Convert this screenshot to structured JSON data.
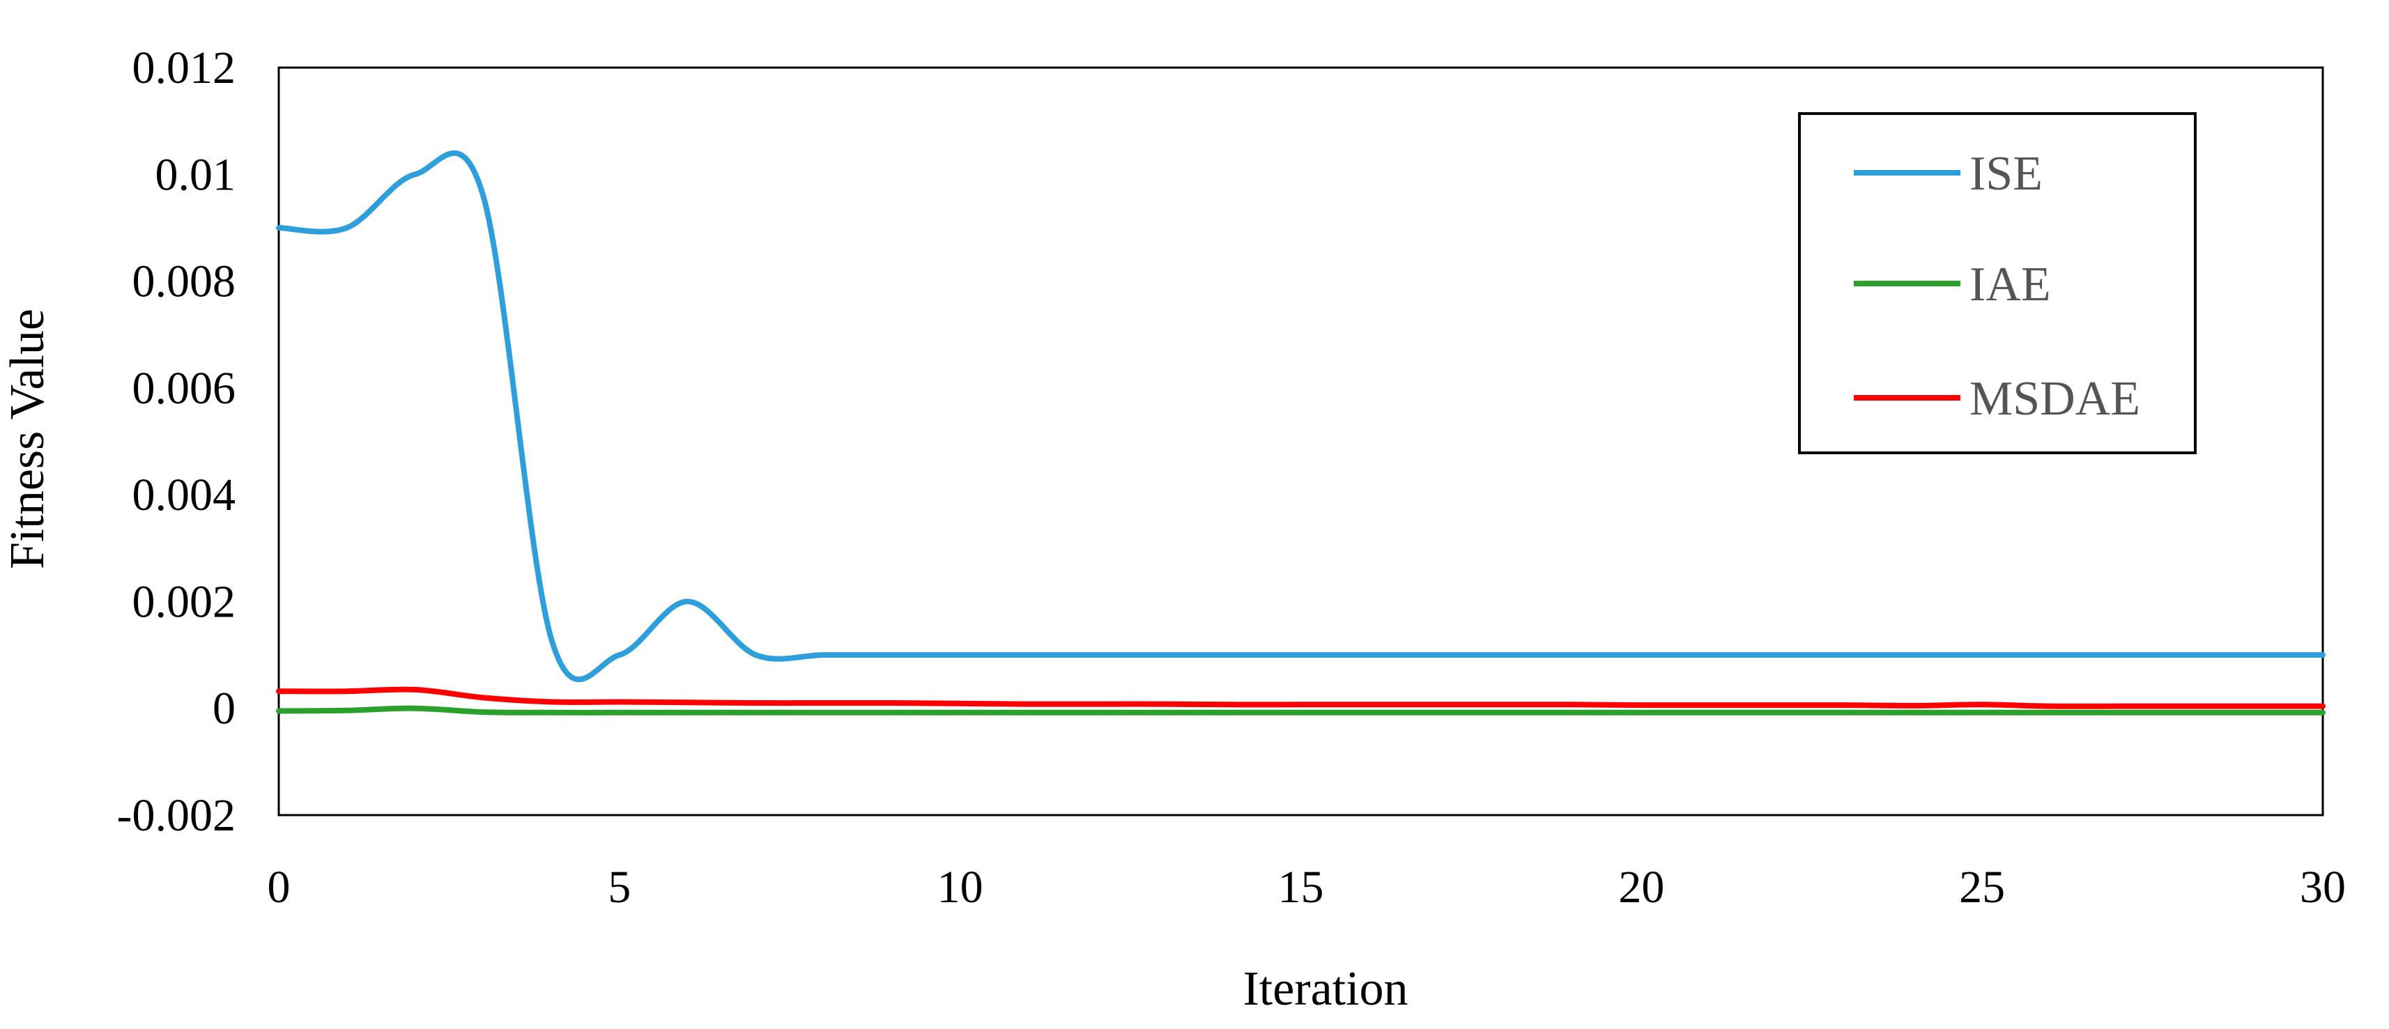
{
  "chart_data": {
    "type": "line",
    "title": "",
    "xlabel": "Iteration",
    "ylabel": "Fitness Value",
    "xlim": [
      0,
      30
    ],
    "ylim": [
      -0.002,
      0.012
    ],
    "xticks": [
      0,
      5,
      10,
      15,
      20,
      25,
      30
    ],
    "xtick_labels": [
      "0",
      "5",
      "10",
      "15",
      "20",
      "25",
      "30"
    ],
    "yticks": [
      -0.002,
      0,
      0.002,
      0.004,
      0.006,
      0.008,
      0.01,
      0.012
    ],
    "ytick_labels": [
      "-0.002",
      "0",
      "0.002",
      "0.004",
      "0.006",
      "0.008",
      "0.01",
      "0.012"
    ],
    "grid": false,
    "legend_position": "top-right",
    "series": [
      {
        "name": "ISE",
        "color": "#2f9fdc",
        "x": [
          0,
          1,
          2,
          3,
          4,
          5,
          6,
          7,
          8,
          9,
          10,
          11,
          12,
          13,
          14,
          15,
          16,
          17,
          18,
          19,
          20,
          21,
          22,
          23,
          24,
          25,
          26,
          27,
          28,
          29,
          30
        ],
        "y": [
          0.009,
          0.009,
          0.01,
          0.0096,
          0.0013,
          0.001,
          0.002,
          0.001,
          0.001,
          0.001,
          0.001,
          0.001,
          0.001,
          0.001,
          0.001,
          0.001,
          0.001,
          0.001,
          0.001,
          0.001,
          0.001,
          0.001,
          0.001,
          0.001,
          0.001,
          0.001,
          0.001,
          0.001,
          0.001,
          0.001,
          0.001
        ]
      },
      {
        "name": "IAE",
        "color": "#2ca02c",
        "x": [
          0,
          1,
          2,
          3,
          4,
          5,
          6,
          7,
          8,
          9,
          10,
          11,
          12,
          13,
          14,
          15,
          16,
          17,
          18,
          19,
          20,
          21,
          22,
          23,
          24,
          25,
          26,
          27,
          28,
          29,
          30
        ],
        "y": [
          -5e-05,
          -4e-05,
          0.0,
          -7e-05,
          -8e-05,
          -8e-05,
          -8e-05,
          -8e-05,
          -8e-05,
          -8e-05,
          -8e-05,
          -8e-05,
          -8e-05,
          -8e-05,
          -8e-05,
          -8e-05,
          -8e-05,
          -8e-05,
          -8e-05,
          -8e-05,
          -8e-05,
          -8e-05,
          -8e-05,
          -8e-05,
          -8e-05,
          -8e-05,
          -8e-05,
          -8e-05,
          -8e-05,
          -8e-05,
          -8e-05
        ]
      },
      {
        "name": "MSDAE",
        "color": "#ff0000",
        "x": [
          0,
          1,
          2,
          3,
          4,
          5,
          6,
          7,
          8,
          9,
          10,
          11,
          12,
          13,
          14,
          15,
          16,
          17,
          18,
          19,
          20,
          21,
          22,
          23,
          24,
          25,
          26,
          27,
          28,
          29,
          30
        ],
        "y": [
          0.00032,
          0.00032,
          0.00035,
          0.0002,
          0.00012,
          0.00012,
          0.00011,
          0.0001,
          0.0001,
          0.0001,
          9e-05,
          8e-05,
          8e-05,
          8e-05,
          7e-05,
          7e-05,
          7e-05,
          7e-05,
          7e-05,
          7e-05,
          6e-05,
          6e-05,
          6e-05,
          6e-05,
          5e-05,
          7e-05,
          4e-05,
          4e-05,
          4e-05,
          4e-05,
          4e-05
        ]
      }
    ]
  }
}
